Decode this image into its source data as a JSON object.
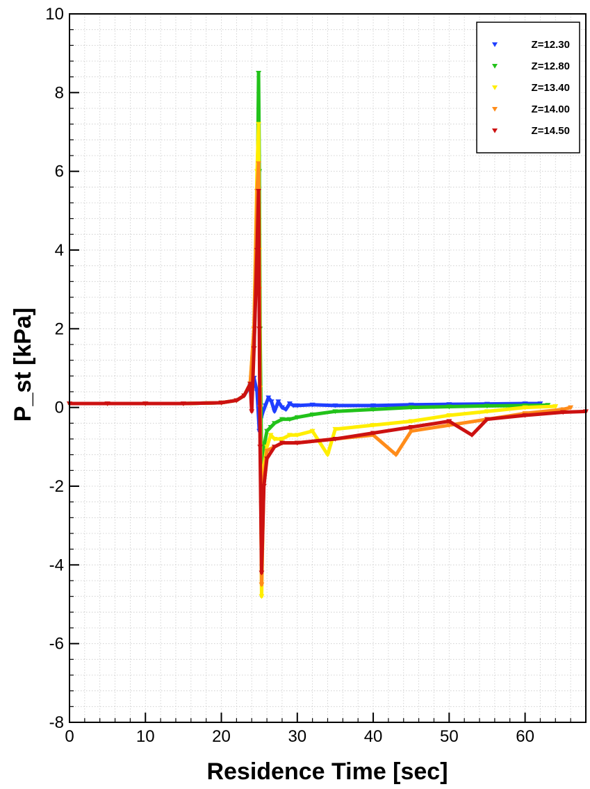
{
  "chart_data": {
    "type": "scatter",
    "xlabel": "Residence Time [sec]",
    "ylabel": "P_st [kPa]",
    "xlim": [
      0,
      68
    ],
    "ylim": [
      -8,
      10
    ],
    "xticks": [
      0,
      10,
      20,
      30,
      40,
      50,
      60
    ],
    "yticks": [
      -8,
      -6,
      -4,
      -2,
      0,
      2,
      4,
      6,
      8,
      10
    ],
    "x_tick_labels": [
      "0",
      "10",
      "20",
      "30",
      "40",
      "50",
      "60"
    ],
    "y_tick_labels": [
      "-8",
      "-6",
      "-4",
      "-2",
      "0",
      "2",
      "4",
      "6",
      "8",
      "10"
    ],
    "grid": true,
    "legend_position": "top-right",
    "marker": "triangle-down",
    "series": [
      {
        "name": "Z=12.30",
        "color": "#1f3fff",
        "x": [
          0,
          5,
          10,
          15,
          20,
          22,
          23,
          23.8,
          24.3,
          24.7,
          25.0,
          25.2,
          25.5,
          25.8,
          26.2,
          26.6,
          27.0,
          27.5,
          28.0,
          28.5,
          29.0,
          29.5,
          30,
          32,
          35,
          40,
          45,
          50,
          55,
          60,
          62
        ],
        "y": [
          0.1,
          0.1,
          0.1,
          0.1,
          0.12,
          0.18,
          0.3,
          0.55,
          0.75,
          0.4,
          -0.6,
          -0.3,
          -0.1,
          0.05,
          0.25,
          0.15,
          -0.1,
          0.15,
          0.0,
          -0.05,
          0.1,
          0.05,
          0.05,
          0.07,
          0.05,
          0.05,
          0.07,
          0.08,
          0.09,
          0.1,
          0.1
        ]
      },
      {
        "name": "Z=12.80",
        "color": "#22c21a",
        "x": [
          0,
          5,
          10,
          15,
          20,
          22,
          23,
          23.8,
          24.3,
          24.7,
          24.9,
          25.0,
          25.1,
          25.3,
          25.6,
          26.0,
          26.5,
          27.0,
          28.0,
          29.0,
          30,
          32,
          35,
          40,
          45,
          50,
          55,
          60,
          63
        ],
        "y": [
          0.1,
          0.1,
          0.1,
          0.1,
          0.12,
          0.18,
          0.3,
          0.6,
          1.5,
          4.5,
          8.5,
          6.0,
          2.0,
          -1.5,
          -1.0,
          -0.6,
          -0.5,
          -0.4,
          -0.3,
          -0.3,
          -0.25,
          -0.18,
          -0.1,
          -0.05,
          0.0,
          0.02,
          0.04,
          0.05,
          0.06
        ]
      },
      {
        "name": "Z=13.40",
        "color": "#ffee00",
        "x": [
          0,
          5,
          10,
          15,
          20,
          22,
          23,
          23.8,
          24.3,
          24.7,
          24.9,
          25.0,
          25.1,
          25.3,
          25.6,
          26.0,
          26.5,
          27.0,
          28.0,
          29.0,
          30,
          32,
          34,
          35,
          40,
          45,
          50,
          55,
          60,
          64
        ],
        "y": [
          0.1,
          0.1,
          0.1,
          0.1,
          0.12,
          0.18,
          0.3,
          0.6,
          2.0,
          6.0,
          7.2,
          4.0,
          0.5,
          -4.8,
          -1.5,
          -1.0,
          -0.7,
          -0.8,
          -0.8,
          -0.7,
          -0.7,
          -0.6,
          -1.2,
          -0.55,
          -0.45,
          -0.35,
          -0.2,
          -0.1,
          0.0,
          0.03
        ]
      },
      {
        "name": "Z=14.00",
        "color": "#ff8c1a",
        "x": [
          0,
          5,
          10,
          15,
          20,
          22,
          23,
          23.8,
          24.3,
          24.7,
          24.9,
          25.0,
          25.1,
          25.3,
          25.6,
          26.0,
          27.0,
          28.0,
          30,
          35,
          40,
          43,
          45,
          50,
          55,
          60,
          65,
          66
        ],
        "y": [
          0.1,
          0.1,
          0.1,
          0.1,
          0.12,
          0.18,
          0.3,
          0.6,
          2.0,
          5.5,
          6.2,
          3.0,
          0.0,
          -4.5,
          -1.8,
          -1.1,
          -1.0,
          -0.9,
          -0.9,
          -0.8,
          -0.7,
          -1.2,
          -0.6,
          -0.45,
          -0.3,
          -0.15,
          -0.05,
          0.0
        ]
      },
      {
        "name": "Z=14.50",
        "color": "#cc1111",
        "x": [
          0,
          5,
          10,
          15,
          20,
          22,
          23,
          23.8,
          24.0,
          24.3,
          24.7,
          24.9,
          25.0,
          25.1,
          25.3,
          25.6,
          26.0,
          27.0,
          28.0,
          30,
          35,
          40,
          45,
          50,
          53,
          55,
          60,
          65,
          68
        ],
        "y": [
          0.1,
          0.1,
          0.1,
          0.1,
          0.12,
          0.18,
          0.3,
          0.6,
          -0.1,
          1.5,
          4.0,
          5.5,
          2.0,
          -1.0,
          -4.2,
          -2.0,
          -1.3,
          -1.0,
          -0.9,
          -0.9,
          -0.8,
          -0.65,
          -0.5,
          -0.35,
          -0.7,
          -0.3,
          -0.2,
          -0.12,
          -0.1
        ]
      }
    ]
  }
}
